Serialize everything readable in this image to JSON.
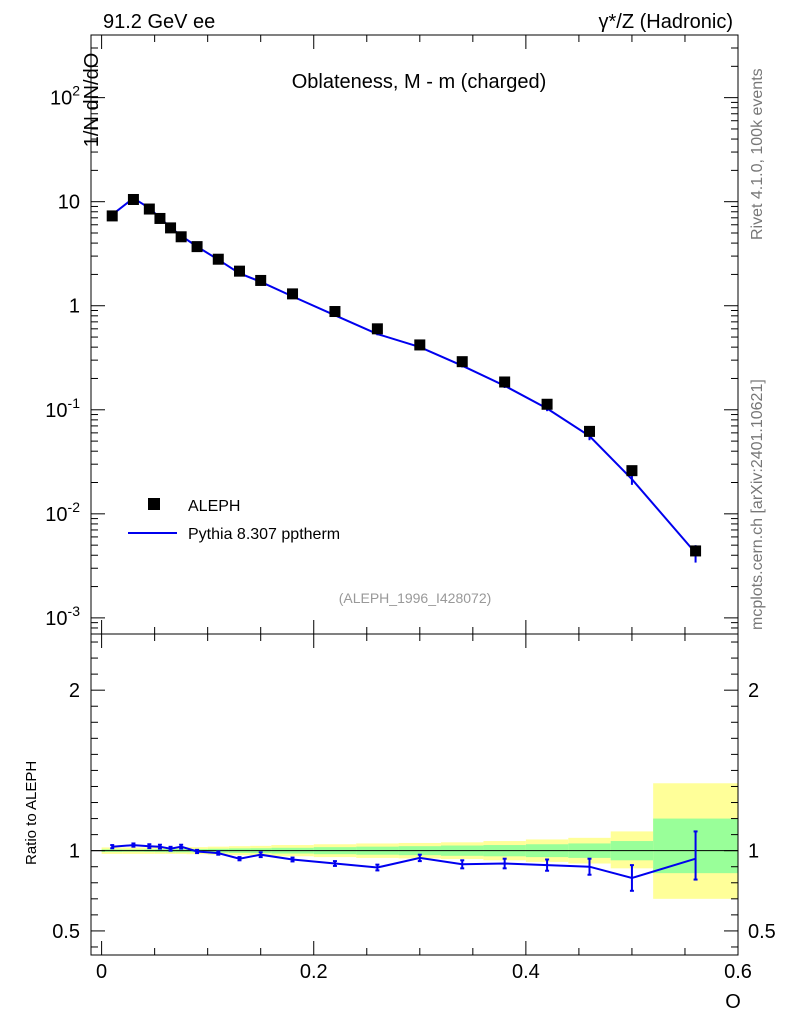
{
  "header": {
    "left": "91.2 GeV ee",
    "right": "γ*/Z (Hadronic)"
  },
  "side_labels": {
    "rivet": "Rivet 4.1.0,  100k events",
    "mcplots": "mcplots.cern.ch [arXiv:2401.10621]"
  },
  "chart_data": [
    {
      "type": "line",
      "scale": "log",
      "title": "Oblateness, M - m (charged)",
      "ylabel": "1/N  dN/dO",
      "xlabel": "O",
      "xlim": [
        -0.01,
        0.6
      ],
      "ylim": [
        0.0007,
        400
      ],
      "yticks": [
        {
          "v": 0.001,
          "base": "10",
          "exp": "-3"
        },
        {
          "v": 0.01,
          "base": "10",
          "exp": "-2"
        },
        {
          "v": 0.1,
          "base": "10",
          "exp": "-1"
        },
        {
          "v": 1,
          "base": "1",
          "exp": ""
        },
        {
          "v": 10,
          "base": "10",
          "exp": ""
        },
        {
          "v": 100,
          "base": "10",
          "exp": "2"
        }
      ],
      "analysis_id": "(ALEPH_1996_I428072)",
      "legend": {
        "position": "lower-left",
        "entries": [
          "ALEPH",
          "Pythia 8.307 pptherm"
        ]
      },
      "series": [
        {
          "name": "ALEPH",
          "style": "markers",
          "x": [
            0.01,
            0.03,
            0.045,
            0.055,
            0.065,
            0.075,
            0.09,
            0.11,
            0.13,
            0.15,
            0.18,
            0.22,
            0.26,
            0.3,
            0.34,
            0.38,
            0.42,
            0.46,
            0.5,
            0.56
          ],
          "values": [
            7.3,
            10.5,
            8.5,
            6.9,
            5.6,
            4.6,
            3.7,
            2.8,
            2.15,
            1.75,
            1.3,
            0.88,
            0.6,
            0.42,
            0.29,
            0.185,
            0.113,
            0.062,
            0.026,
            0.0044
          ]
        },
        {
          "name": "Pythia 8.307 pptherm",
          "style": "line",
          "color": "#0000ee",
          "x": [
            0.01,
            0.03,
            0.045,
            0.055,
            0.065,
            0.075,
            0.09,
            0.11,
            0.13,
            0.15,
            0.18,
            0.22,
            0.26,
            0.3,
            0.34,
            0.38,
            0.42,
            0.46,
            0.5,
            0.56
          ],
          "values": [
            7.5,
            10.8,
            8.7,
            7.0,
            5.65,
            4.7,
            3.7,
            2.77,
            2.05,
            1.7,
            1.23,
            0.81,
            0.535,
            0.4,
            0.265,
            0.17,
            0.103,
            0.056,
            0.0215,
            0.0042
          ],
          "err_lo": [
            0.2,
            0.3,
            0.3,
            0.25,
            0.2,
            0.15,
            0.1,
            0.08,
            0.05,
            0.05,
            0.03,
            0.02,
            0.015,
            0.012,
            0.01,
            0.008,
            0.006,
            0.005,
            0.0025,
            0.0008
          ],
          "err_hi": [
            0.2,
            0.3,
            0.3,
            0.25,
            0.2,
            0.15,
            0.1,
            0.08,
            0.05,
            0.05,
            0.03,
            0.02,
            0.015,
            0.012,
            0.01,
            0.008,
            0.006,
            0.005,
            0.0025,
            0.0008
          ]
        }
      ]
    },
    {
      "type": "line",
      "title": "",
      "ylabel": "Ratio to ALEPH",
      "xlabel": "O",
      "xlim": [
        -0.01,
        0.6
      ],
      "ylim": [
        0.35,
        2.35
      ],
      "yticks": [
        "0.5",
        "1",
        "2"
      ],
      "xticks": [
        "0",
        "0.2",
        "0.4",
        "0.6"
      ],
      "bands": {
        "edges": [
          0,
          0.02,
          0.04,
          0.05,
          0.06,
          0.07,
          0.08,
          0.1,
          0.12,
          0.14,
          0.16,
          0.2,
          0.24,
          0.28,
          0.32,
          0.36,
          0.4,
          0.44,
          0.48,
          0.52,
          0.6
        ],
        "stat_lo": [
          0.992,
          0.993,
          0.992,
          0.991,
          0.99,
          0.99,
          0.99,
          0.988,
          0.986,
          0.985,
          0.982,
          0.978,
          0.975,
          0.972,
          0.968,
          0.965,
          0.96,
          0.955,
          0.94,
          0.86
        ],
        "stat_hi": [
          1.008,
          1.007,
          1.008,
          1.009,
          1.01,
          1.01,
          1.01,
          1.012,
          1.014,
          1.015,
          1.018,
          1.022,
          1.025,
          1.028,
          1.032,
          1.035,
          1.04,
          1.045,
          1.06,
          1.2
        ],
        "total_lo": [
          0.98,
          0.98,
          0.98,
          0.98,
          0.98,
          0.98,
          0.978,
          0.975,
          0.972,
          0.97,
          0.965,
          0.96,
          0.955,
          0.952,
          0.948,
          0.94,
          0.93,
          0.92,
          0.89,
          0.7
        ],
        "total_hi": [
          1.02,
          1.02,
          1.02,
          1.02,
          1.02,
          1.02,
          1.022,
          1.025,
          1.028,
          1.03,
          1.035,
          1.04,
          1.045,
          1.048,
          1.052,
          1.06,
          1.07,
          1.08,
          1.12,
          1.42
        ]
      },
      "series": [
        {
          "name": "Pythia 8.307 pptherm",
          "color": "#0000ee",
          "x": [
            0.01,
            0.03,
            0.045,
            0.055,
            0.065,
            0.075,
            0.09,
            0.11,
            0.13,
            0.15,
            0.18,
            0.22,
            0.26,
            0.3,
            0.34,
            0.38,
            0.42,
            0.46,
            0.5,
            0.56
          ],
          "values": [
            1.025,
            1.035,
            1.028,
            1.025,
            1.012,
            1.025,
            0.995,
            0.985,
            0.95,
            0.975,
            0.945,
            0.92,
            0.895,
            0.955,
            0.915,
            0.92,
            0.91,
            0.9,
            0.83,
            0.95
          ],
          "err_lo": [
            0.01,
            0.01,
            0.012,
            0.012,
            0.012,
            0.012,
            0.01,
            0.01,
            0.01,
            0.015,
            0.012,
            0.015,
            0.018,
            0.02,
            0.025,
            0.03,
            0.035,
            0.05,
            0.08,
            0.13
          ],
          "err_hi": [
            0.01,
            0.01,
            0.012,
            0.012,
            0.012,
            0.012,
            0.01,
            0.01,
            0.01,
            0.015,
            0.012,
            0.015,
            0.018,
            0.02,
            0.025,
            0.03,
            0.035,
            0.05,
            0.08,
            0.17
          ]
        }
      ]
    }
  ]
}
